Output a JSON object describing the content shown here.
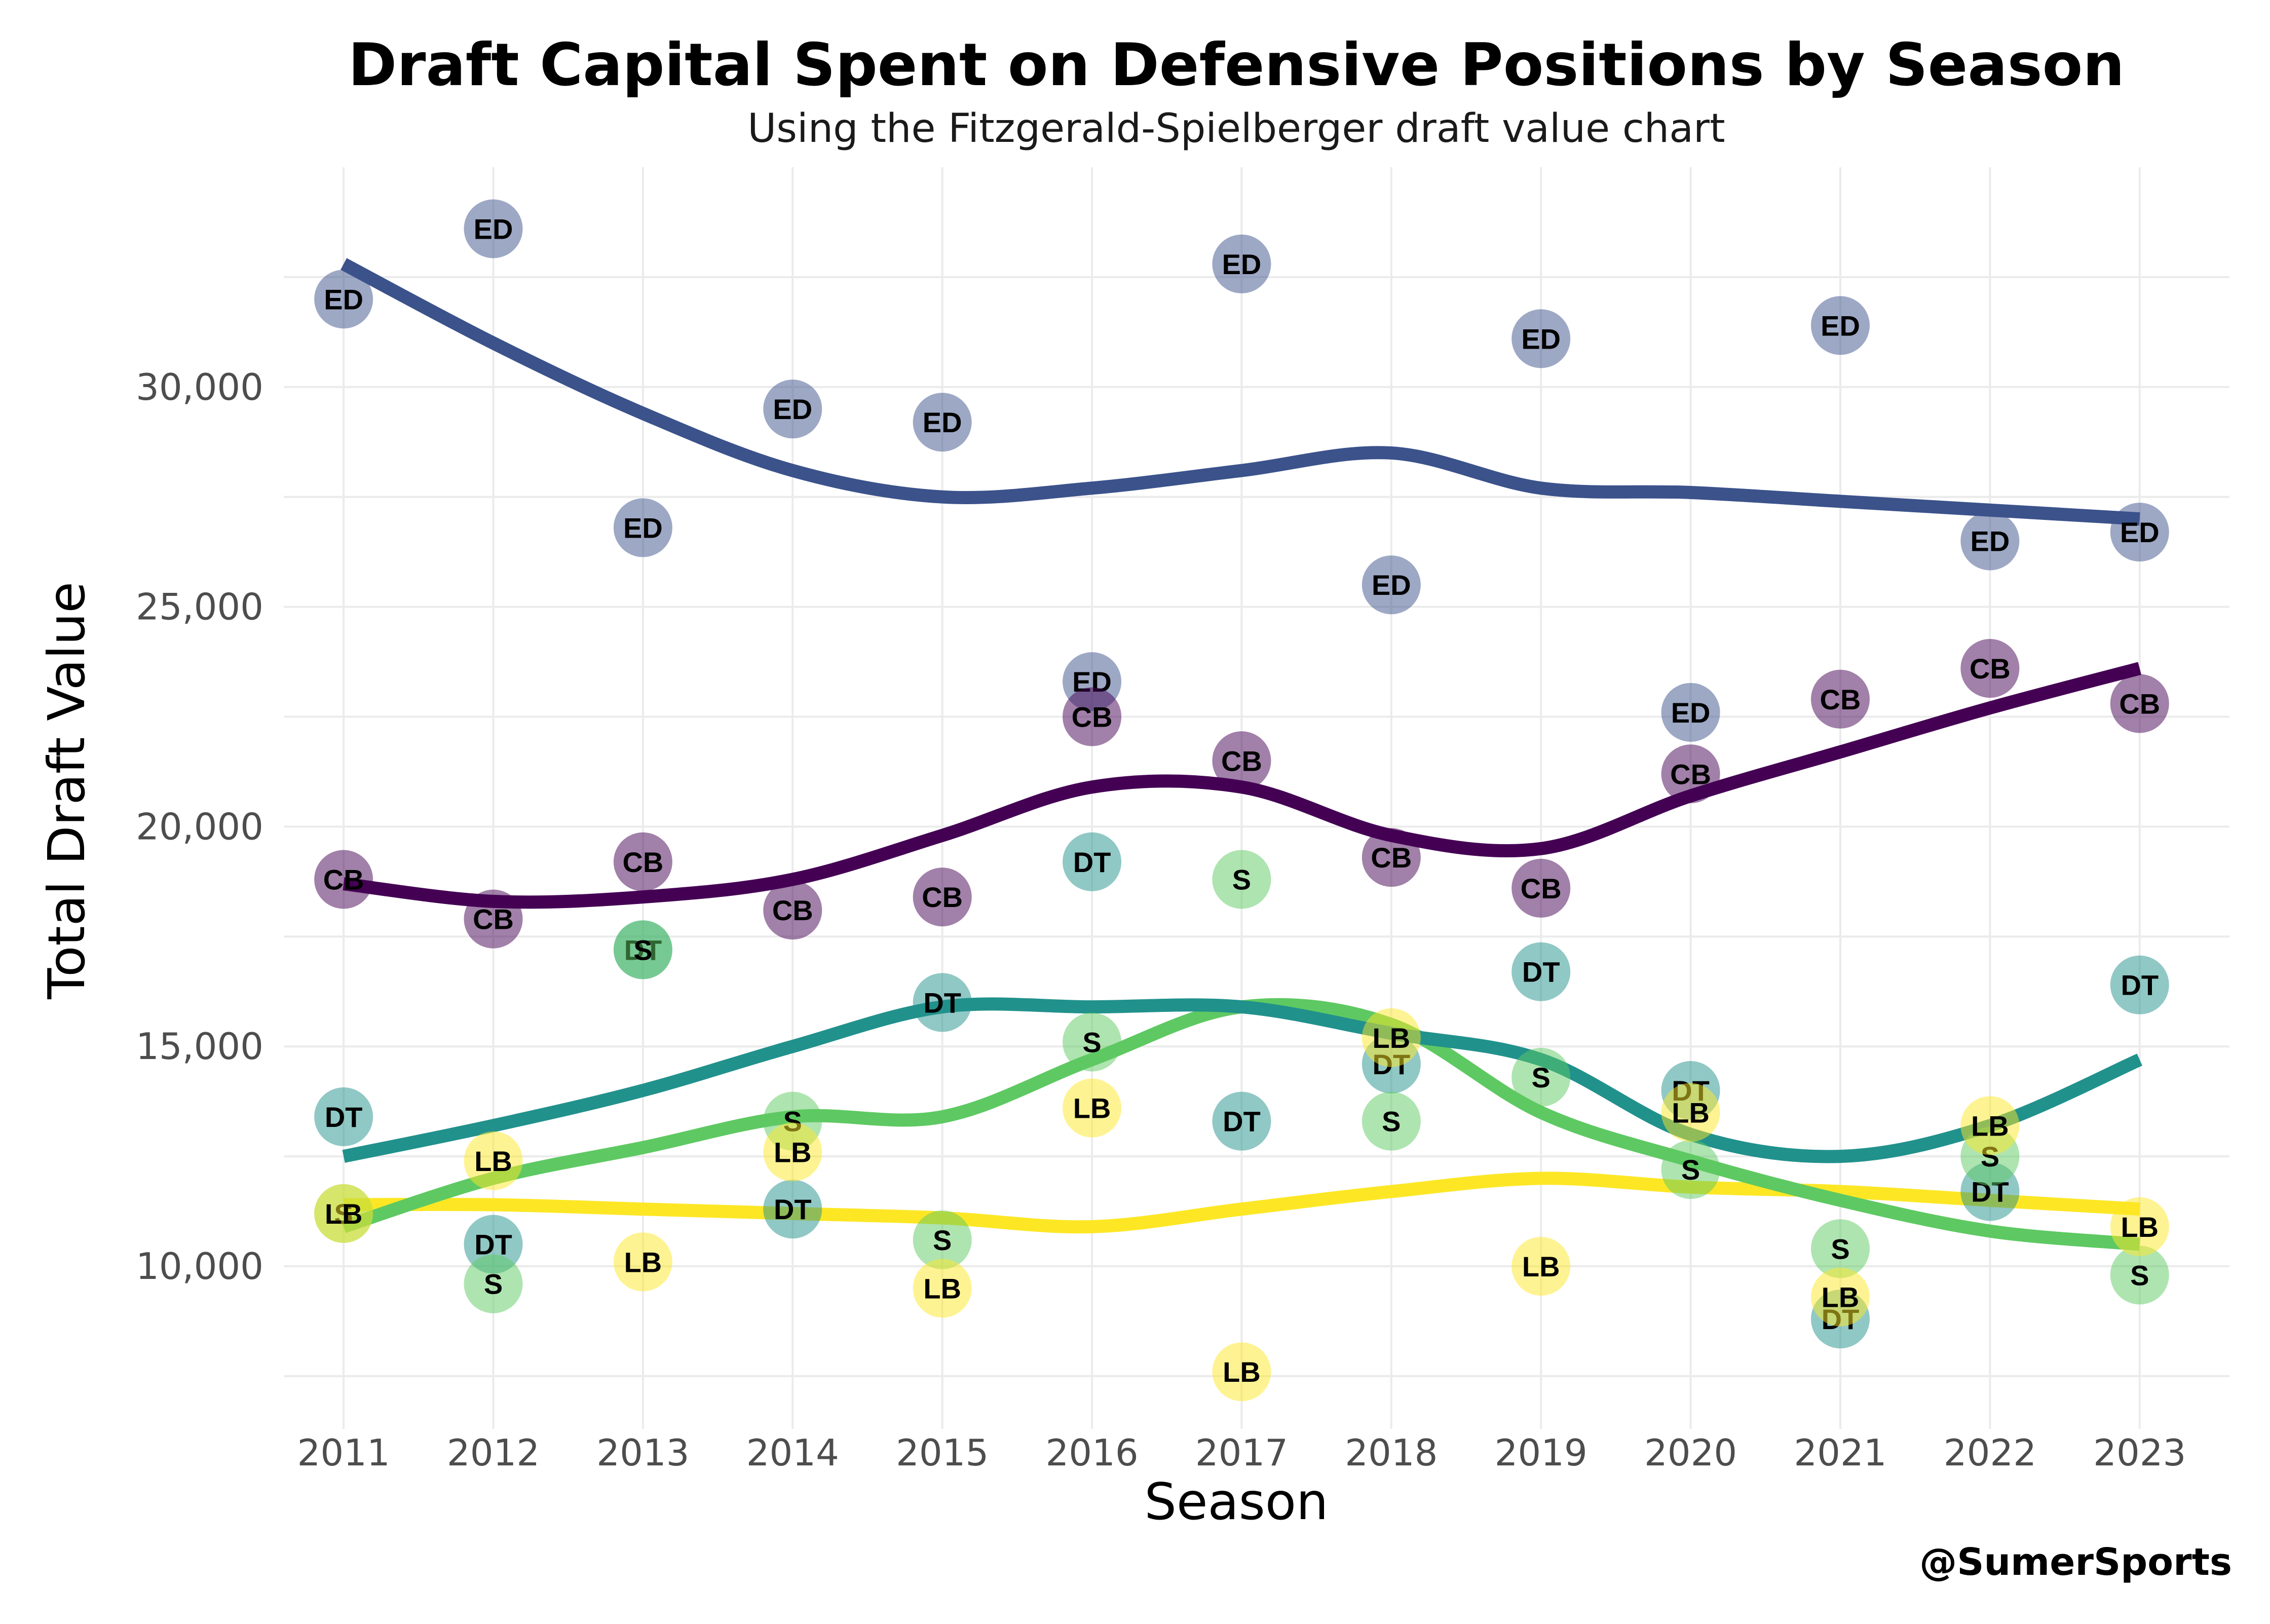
{
  "chart_data": {
    "type": "scatter",
    "title": "Draft Capital Spent on Defensive Positions by Season",
    "subtitle": "Using the Fitzgerald-Spielberger draft value chart",
    "xlabel": "Season",
    "ylabel": "Total Draft Value",
    "caption": "@SumerSports",
    "x": [
      2011,
      2012,
      2013,
      2014,
      2015,
      2016,
      2017,
      2018,
      2019,
      2020,
      2021,
      2022,
      2023
    ],
    "xlim": [
      2010.6,
      2023.6
    ],
    "ylim": [
      6300,
      35000
    ],
    "y_ticks": [
      10000,
      15000,
      20000,
      25000,
      30000
    ],
    "y_tick_labels": [
      "10,000",
      "15,000",
      "20,000",
      "25,000",
      "30,000"
    ],
    "grid": true,
    "legend": "none",
    "series": [
      {
        "name": "ED",
        "color": "#3b528b",
        "values": [
          32000,
          33600,
          26800,
          29500,
          29200,
          23300,
          32800,
          25500,
          31100,
          22600,
          31400,
          26500,
          26700
        ],
        "trend": [
          32800,
          31000,
          29400,
          28100,
          27500,
          27700,
          28100,
          28500,
          27700,
          27600,
          27400,
          27200,
          27000
        ]
      },
      {
        "name": "CB",
        "color": "#440154",
        "values": [
          18800,
          17900,
          19200,
          18100,
          18400,
          22500,
          21500,
          19300,
          18600,
          21200,
          22900,
          23600,
          22800
        ],
        "trend": [
          18700,
          18300,
          18400,
          18800,
          19800,
          20900,
          20900,
          19800,
          19500,
          20700,
          21700,
          22700,
          23600
        ]
      },
      {
        "name": "DT",
        "color": "#21918c",
        "values": [
          13400,
          10500,
          17200,
          11300,
          16000,
          19200,
          13300,
          14600,
          16700,
          14000,
          8800,
          11700,
          16400
        ],
        "trend": [
          12500,
          13200,
          14000,
          15000,
          15900,
          15900,
          15900,
          15300,
          14700,
          13000,
          12500,
          13200,
          14700
        ]
      },
      {
        "name": "S",
        "color": "#5ec962",
        "values": [
          11200,
          9600,
          17200,
          13300,
          10600,
          15100,
          18800,
          13300,
          14300,
          12200,
          10400,
          12500,
          9800
        ],
        "trend": [
          10900,
          12000,
          12700,
          13400,
          13400,
          14700,
          15900,
          15500,
          13500,
          12400,
          11500,
          10800,
          10500
        ]
      },
      {
        "name": "LB",
        "color": "#fde725",
        "values": [
          11200,
          12400,
          10100,
          12600,
          9500,
          13600,
          7600,
          15200,
          10000,
          13500,
          9300,
          13200,
          10900
        ],
        "trend": [
          11400,
          11400,
          11300,
          11200,
          11100,
          10900,
          11300,
          11700,
          12000,
          11800,
          11700,
          11500,
          11300
        ]
      }
    ]
  }
}
